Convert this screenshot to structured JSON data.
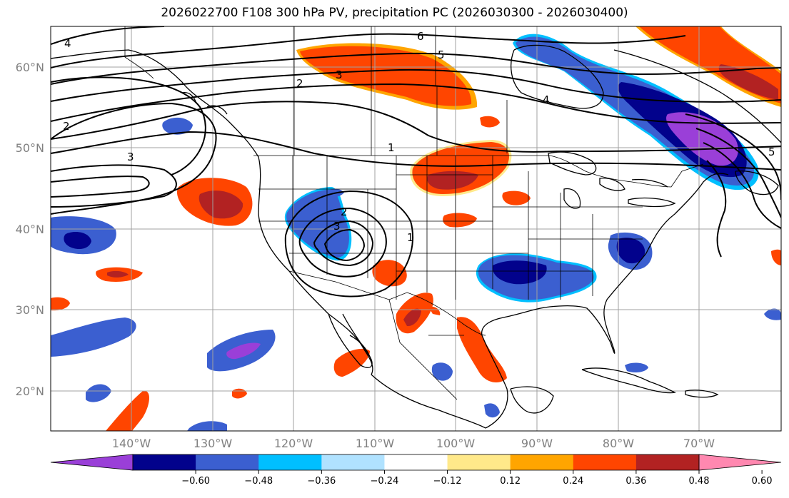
{
  "title": "2026022700 F108 300 hPa PV, precipitation PC (2026030300 - 2026030400)",
  "latitude_labels": [
    "60°N",
    "50°N",
    "40°N",
    "30°N",
    "20°N"
  ],
  "longitude_labels": [
    "140°W",
    "130°W",
    "120°W",
    "110°W",
    "100°W",
    "90°W",
    "80°W",
    "70°W"
  ],
  "colorbar": {
    "ticks": [
      "−0.60",
      "−0.48",
      "−0.36",
      "−0.24",
      "−0.12",
      "0.12",
      "0.24",
      "0.36",
      "0.48",
      "0.60"
    ],
    "colors": [
      "#9a3fd8",
      "#02028c",
      "#3b5fd0",
      "#00bfff",
      "#b0e2ff",
      "#ffffff",
      "#ffe98a",
      "#ffa500",
      "#ff4500",
      "#b22222",
      "#ff88b0"
    ]
  },
  "pv_contour_labels": [
    {
      "text": "4"
    },
    {
      "text": "6"
    },
    {
      "text": "5"
    },
    {
      "text": "3"
    },
    {
      "text": "2"
    },
    {
      "text": "2"
    },
    {
      "text": "3"
    },
    {
      "text": "1"
    },
    {
      "text": "4"
    },
    {
      "text": "2"
    },
    {
      "text": "3"
    },
    {
      "text": "1"
    },
    {
      "text": "5"
    }
  ]
}
